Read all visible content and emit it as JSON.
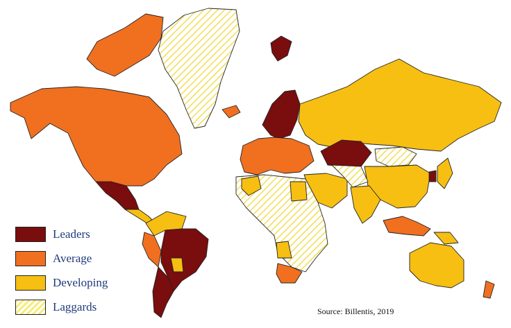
{
  "categories": [
    {
      "label": "Leaders",
      "color": "#7a0d0d",
      "pattern": "solid"
    },
    {
      "label": "Average",
      "color": "#f07020",
      "pattern": "solid"
    },
    {
      "label": "Developing",
      "color": "#f6bf12",
      "pattern": "solid"
    },
    {
      "label": "Laggards",
      "color": "#f6ec80",
      "pattern": "hatched"
    }
  ],
  "source": "Source: Billentis, 2019"
}
